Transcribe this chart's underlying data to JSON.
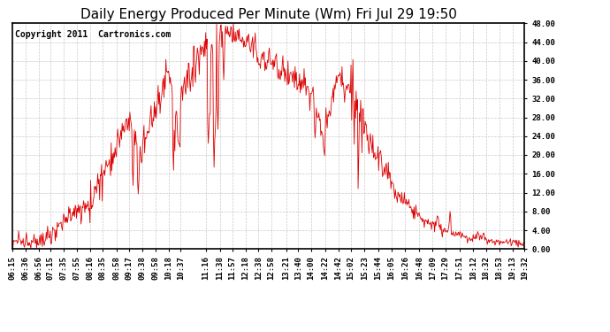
{
  "title": "Daily Energy Produced Per Minute (Wm) Fri Jul 29 19:50",
  "copyright_text": "Copyright 2011  Cartronics.com",
  "line_color": "#dd0000",
  "bg_color": "#ffffff",
  "plot_bg_color": "#ffffff",
  "grid_color": "#bbbbbb",
  "ylim": [
    0,
    48
  ],
  "yticks": [
    0.0,
    4.0,
    8.0,
    12.0,
    16.0,
    20.0,
    24.0,
    28.0,
    32.0,
    36.0,
    40.0,
    44.0,
    48.0
  ],
  "xtick_labels": [
    "06:15",
    "06:36",
    "06:56",
    "07:15",
    "07:35",
    "07:55",
    "08:16",
    "08:35",
    "08:58",
    "09:17",
    "09:38",
    "09:58",
    "10:18",
    "10:37",
    "11:16",
    "11:38",
    "11:57",
    "12:18",
    "12:38",
    "12:58",
    "13:21",
    "13:40",
    "14:00",
    "14:22",
    "14:42",
    "15:02",
    "15:23",
    "15:44",
    "16:05",
    "16:26",
    "16:48",
    "17:09",
    "17:29",
    "17:51",
    "18:12",
    "18:32",
    "18:53",
    "19:13",
    "19:32"
  ],
  "title_fontsize": 11,
  "tick_fontsize": 6.5,
  "copyright_fontsize": 7
}
